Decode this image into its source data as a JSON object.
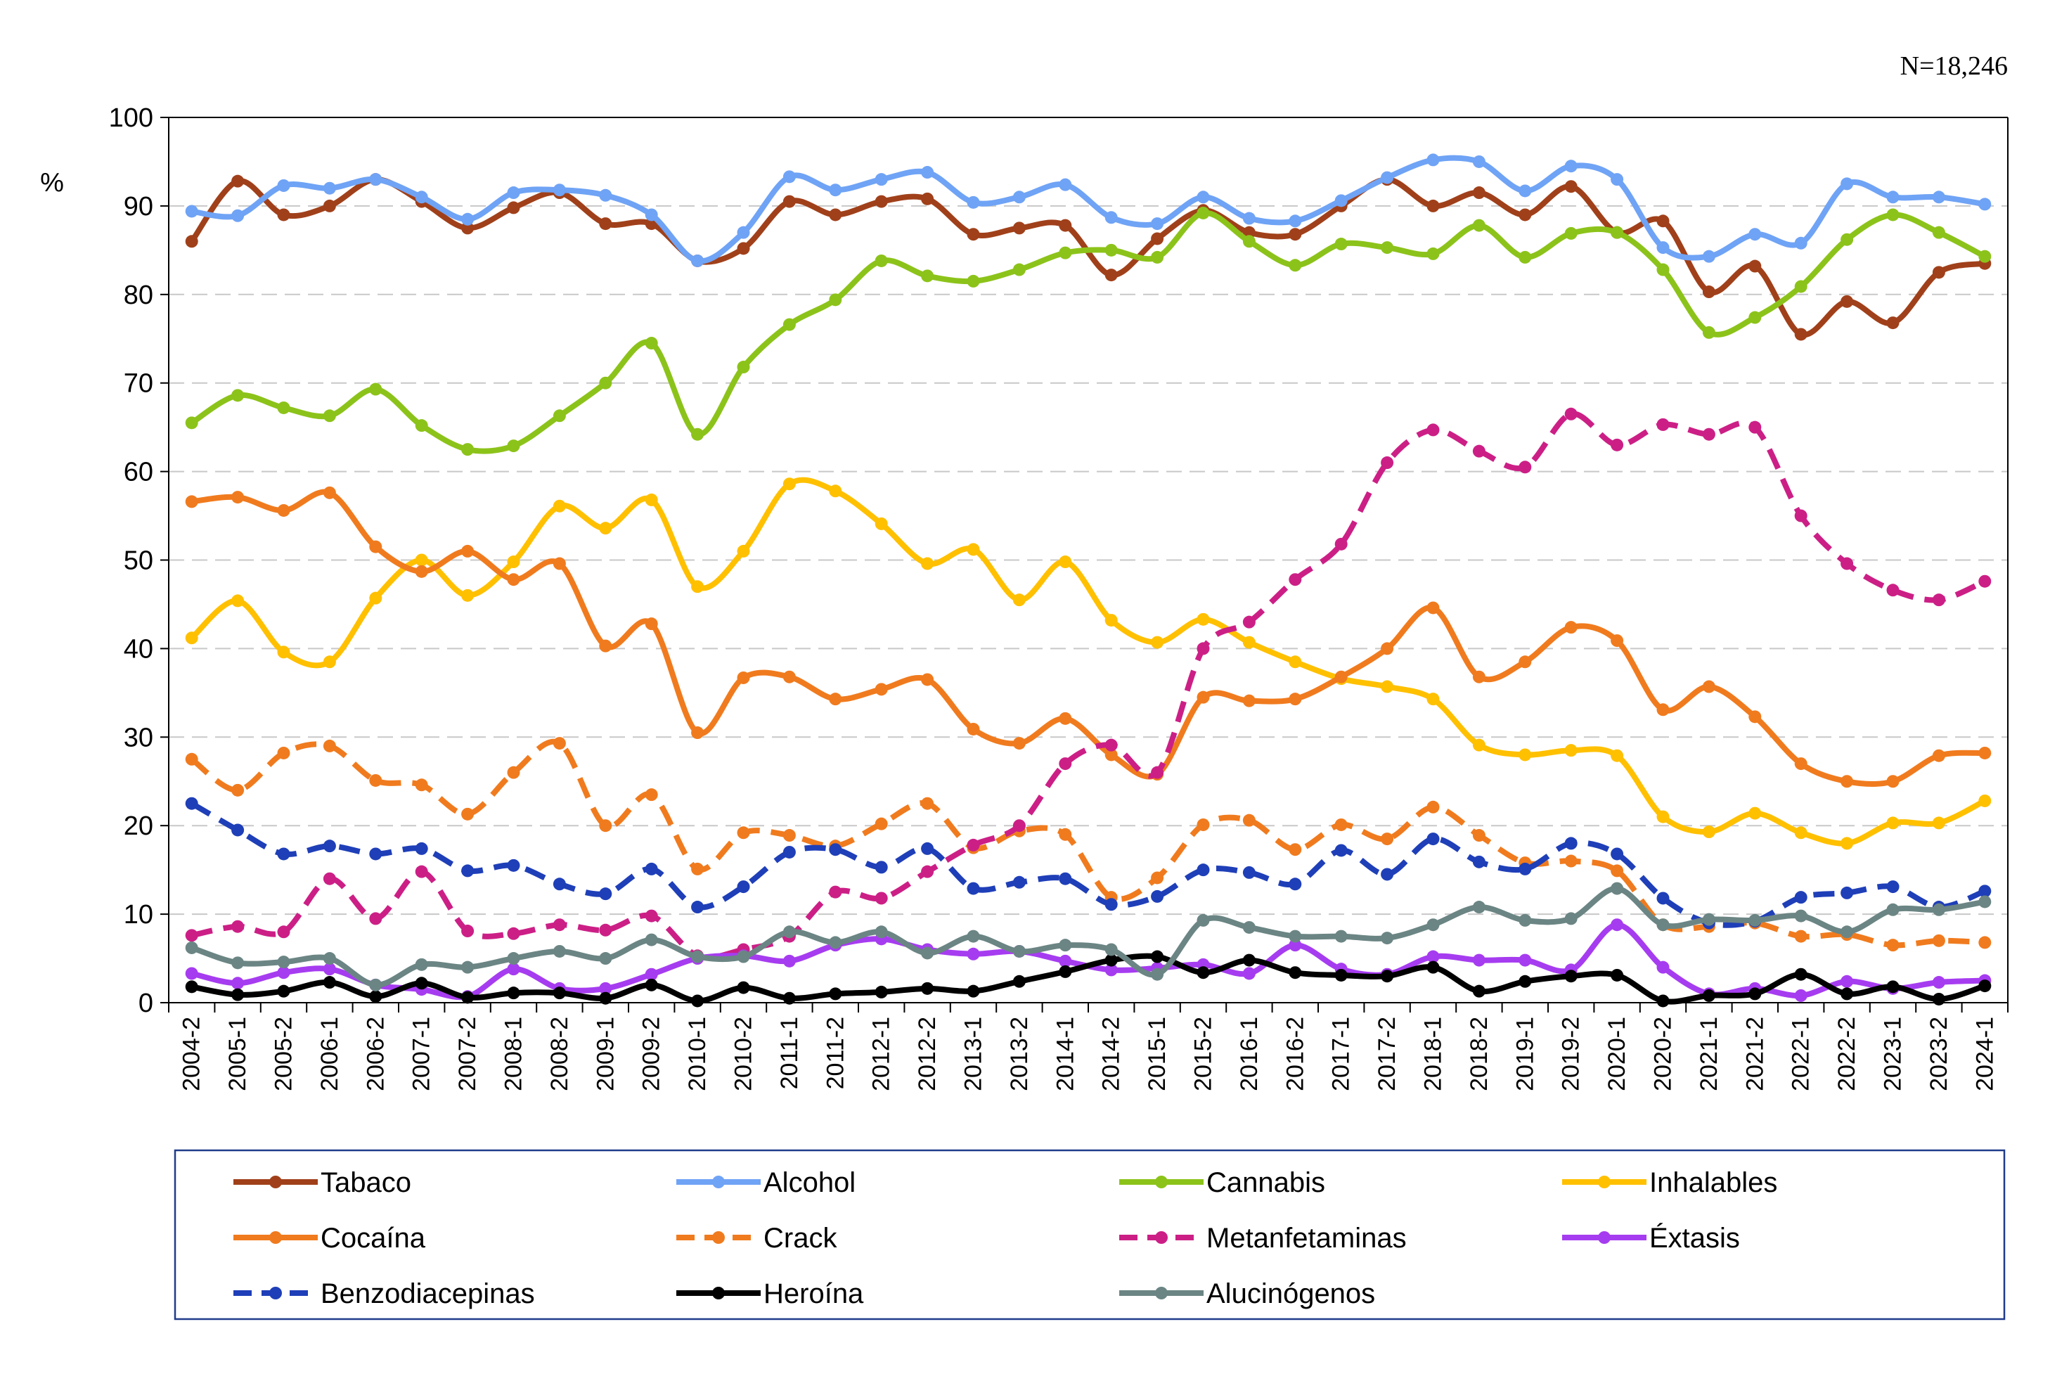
{
  "chart_data": {
    "type": "line",
    "annotation": "N=18,246",
    "ylabel": "%",
    "ylim": [
      0,
      100
    ],
    "yticks": [
      0,
      10,
      20,
      30,
      40,
      50,
      60,
      70,
      80,
      90,
      100
    ],
    "grid": "horizontal dashed",
    "legend_position": "bottom",
    "x": [
      "2004-2",
      "2005-1",
      "2005-2",
      "2006-1",
      "2006-2",
      "2007-1",
      "2007-2",
      "2008-1",
      "2008-2",
      "2009-1",
      "2009-2",
      "2010-1",
      "2010-2",
      "2011-1",
      "2011-2",
      "2012-1",
      "2012-2",
      "2013-1",
      "2013-2",
      "2014-1",
      "2014-2",
      "2015-1",
      "2015-2",
      "2016-1",
      "2016-2",
      "2017-1",
      "2017-2",
      "2018-1",
      "2018-2",
      "2019-1",
      "2019-2",
      "2020-1",
      "2020-2",
      "2021-1",
      "2021-2",
      "2022-1",
      "2022-2",
      "2023-1",
      "2023-2",
      "2024-1"
    ],
    "series": [
      {
        "name": "Tabaco",
        "color": "#a0401a",
        "dash": false,
        "values": [
          86,
          92.8,
          89,
          90,
          93,
          90.5,
          87.5,
          89.8,
          91.5,
          88,
          88,
          83.8,
          85.2,
          90.5,
          89,
          90.5,
          90.8,
          86.8,
          87.5,
          87.8,
          82.2,
          86.3,
          89.5,
          87,
          86.8,
          90,
          93,
          90,
          91.5,
          89,
          92.2,
          87,
          88.3,
          80.3,
          83.2,
          75.5,
          79.2,
          76.8,
          82.5,
          83.5
        ]
      },
      {
        "name": "Alcohol",
        "color": "#6fa3f5",
        "dash": false,
        "values": [
          89.4,
          88.9,
          92.3,
          92,
          93,
          91,
          88.5,
          91.5,
          91.8,
          91.2,
          89,
          83.8,
          87,
          93.3,
          91.8,
          93,
          93.8,
          90.4,
          91,
          92.4,
          88.7,
          88,
          91,
          88.6,
          88.3,
          90.6,
          93.2,
          95.2,
          95,
          91.7,
          94.5,
          93,
          85.3,
          84.3,
          86.8,
          85.8,
          92.5,
          91,
          91,
          90.2
        ]
      },
      {
        "name": "Cannabis",
        "color": "#8cc31a",
        "dash": false,
        "values": [
          65.5,
          68.6,
          67.2,
          66.3,
          69.3,
          65.2,
          62.5,
          62.9,
          66.3,
          70,
          74.5,
          64.2,
          71.8,
          76.6,
          79.4,
          83.8,
          82.1,
          81.5,
          82.8,
          84.7,
          85,
          84.2,
          89.2,
          86,
          83.3,
          85.7,
          85.3,
          84.6,
          87.8,
          84.2,
          86.9,
          87,
          82.8,
          75.7,
          77.4,
          80.9,
          86.2,
          89,
          87,
          84.3
        ]
      },
      {
        "name": "Inhalables",
        "color": "#ffc000",
        "dash": false,
        "values": [
          41.2,
          45.4,
          39.6,
          38.5,
          45.7,
          50,
          46,
          49.8,
          56.1,
          53.6,
          56.8,
          47,
          51,
          58.6,
          57.8,
          54.1,
          49.6,
          51.2,
          45.5,
          49.8,
          43.2,
          40.7,
          43.3,
          40.7,
          38.5,
          36.6,
          35.7,
          34.3,
          29.1,
          28,
          28.5,
          27.9,
          21,
          19.3,
          21.4,
          19.2,
          18,
          20.3,
          20.3,
          22.8
        ]
      },
      {
        "name": "Cocaína",
        "color": "#f07b1e",
        "dash": false,
        "values": [
          56.6,
          57.1,
          55.6,
          57.6,
          51.5,
          48.7,
          51,
          47.8,
          49.6,
          40.3,
          42.8,
          30.5,
          36.7,
          36.8,
          34.3,
          35.4,
          36.5,
          30.9,
          29.3,
          32.1,
          28,
          25.8,
          34.5,
          34.1,
          34.3,
          36.8,
          40,
          44.6,
          36.8,
          38.5,
          42.4,
          40.9,
          33.1,
          35.7,
          32.3,
          27,
          25,
          25,
          27.9,
          28.2
        ]
      },
      {
        "name": "Crack",
        "color": "#f07b1e",
        "dash": true,
        "values": [
          27.5,
          24,
          28.2,
          29,
          25.1,
          24.6,
          21.3,
          26,
          29.3,
          20,
          23.5,
          15.1,
          19.2,
          18.9,
          17.7,
          20.2,
          22.5,
          17.5,
          19.4,
          19,
          11.9,
          14.1,
          20.1,
          20.6,
          17.3,
          20.1,
          18.5,
          22.1,
          18.9,
          15.8,
          16,
          14.9,
          8.8,
          8.6,
          9,
          7.5,
          7.7,
          6.5,
          7,
          6.8
        ]
      },
      {
        "name": "Metanfetaminas",
        "color": "#cc1f86",
        "dash": true,
        "values": [
          7.6,
          8.6,
          8,
          14,
          9.5,
          14.8,
          8.1,
          7.8,
          8.8,
          8.2,
          9.8,
          5.3,
          6,
          7.5,
          12.5,
          11.8,
          14.8,
          17.8,
          20,
          27,
          29.1,
          26,
          40,
          43,
          47.8,
          51.8,
          61,
          64.7,
          62.3,
          60.5,
          66.5,
          63,
          65.3,
          64.2,
          65,
          55,
          49.6,
          46.6,
          45.5,
          47.6
        ]
      },
      {
        "name": "Éxtasis",
        "color": "#a63cf0",
        "dash": false,
        "values": [
          3.3,
          2.2,
          3.4,
          3.8,
          2,
          1.5,
          0.7,
          3.8,
          1.6,
          1.6,
          3.2,
          5,
          5.3,
          4.7,
          6.5,
          7.2,
          6,
          5.5,
          5.8,
          4.7,
          3.7,
          3.9,
          4.3,
          3.3,
          6.5,
          3.8,
          3.2,
          5.2,
          4.8,
          4.8,
          3.7,
          8.8,
          4,
          1,
          1.6,
          0.8,
          2.4,
          1.6,
          2.3,
          2.5
        ]
      },
      {
        "name": "Benzodiacepinas",
        "color": "#1f3fb8",
        "dash": true,
        "values": [
          22.5,
          19.5,
          16.8,
          17.7,
          16.8,
          17.4,
          14.9,
          15.5,
          13.4,
          12.3,
          15.1,
          10.8,
          13.1,
          17,
          17.3,
          15.3,
          17.4,
          12.9,
          13.6,
          14,
          11.1,
          12,
          15,
          14.7,
          13.4,
          17.2,
          14.5,
          18.5,
          15.9,
          15.1,
          18,
          16.8,
          11.8,
          9,
          9.2,
          11.9,
          12.4,
          13.1,
          10.8,
          12.6
        ]
      },
      {
        "name": "Heroína",
        "color": "#000000",
        "dash": false,
        "values": [
          1.8,
          0.9,
          1.3,
          2.3,
          0.7,
          2.2,
          0.6,
          1.1,
          1.1,
          0.5,
          2,
          0.2,
          1.7,
          0.5,
          1,
          1.2,
          1.6,
          1.3,
          2.4,
          3.5,
          4.8,
          5.2,
          3.4,
          4.8,
          3.4,
          3.1,
          3,
          4,
          1.3,
          2.4,
          3,
          3.1,
          0.2,
          0.8,
          1,
          3.2,
          1,
          1.8,
          0.4,
          1.9
        ]
      },
      {
        "name": "Alucinógenos",
        "color": "#6b8584",
        "dash": false,
        "values": [
          6.2,
          4.5,
          4.6,
          5,
          2,
          4.3,
          4,
          5,
          5.8,
          5,
          7.1,
          5.2,
          5.2,
          8,
          6.8,
          8,
          5.6,
          7.5,
          5.8,
          6.5,
          6,
          3.2,
          9.3,
          8.5,
          7.5,
          7.5,
          7.3,
          8.8,
          10.8,
          9.3,
          9.5,
          12.9,
          8.8,
          9.4,
          9.3,
          9.8,
          8,
          10.5,
          10.5,
          11.4
        ]
      }
    ]
  }
}
